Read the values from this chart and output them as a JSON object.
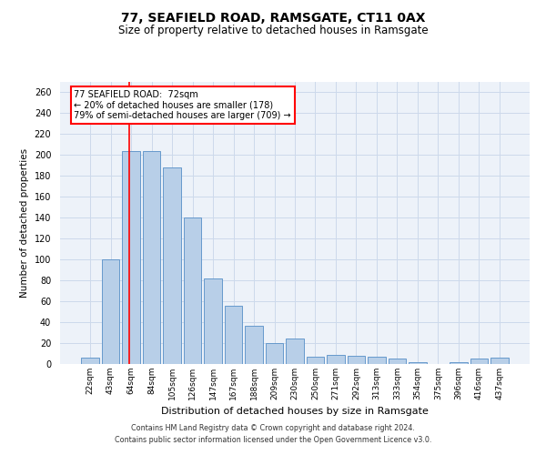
{
  "title_line1": "77, SEAFIELD ROAD, RAMSGATE, CT11 0AX",
  "title_line2": "Size of property relative to detached houses in Ramsgate",
  "xlabel": "Distribution of detached houses by size in Ramsgate",
  "ylabel": "Number of detached properties",
  "bar_labels": [
    "22sqm",
    "43sqm",
    "64sqm",
    "84sqm",
    "105sqm",
    "126sqm",
    "147sqm",
    "167sqm",
    "188sqm",
    "209sqm",
    "230sqm",
    "250sqm",
    "271sqm",
    "292sqm",
    "313sqm",
    "333sqm",
    "354sqm",
    "375sqm",
    "396sqm",
    "416sqm",
    "437sqm"
  ],
  "bar_values": [
    6,
    100,
    204,
    204,
    188,
    140,
    82,
    56,
    37,
    20,
    24,
    7,
    9,
    8,
    7,
    5,
    2,
    0,
    2,
    5,
    6
  ],
  "bar_color": "#b8cfe8",
  "bar_edge_color": "#6699cc",
  "grid_color": "#ccd9eb",
  "background_color": "#edf2f9",
  "ylim": [
    0,
    270
  ],
  "yticks": [
    0,
    20,
    40,
    60,
    80,
    100,
    120,
    140,
    160,
    180,
    200,
    220,
    240,
    260
  ],
  "annotation_line1": "77 SEAFIELD ROAD:  72sqm",
  "annotation_line2": "← 20% of detached houses are smaller (178)",
  "annotation_line3": "79% of semi-detached houses are larger (709) →",
  "footnote1": "Contains HM Land Registry data © Crown copyright and database right 2024.",
  "footnote2": "Contains public sector information licensed under the Open Government Licence v3.0."
}
